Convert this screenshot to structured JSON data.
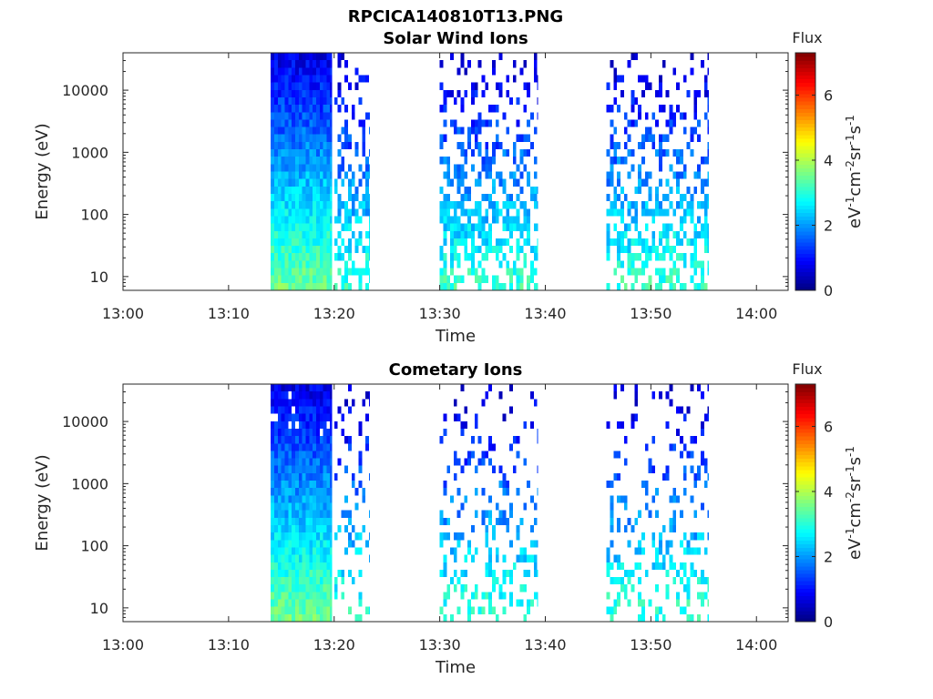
{
  "figure_title": "RPCICA140810T13.PNG",
  "chart_data": [
    {
      "type": "heatmap",
      "title": "Solar Wind Ions",
      "xlabel": "Time",
      "ylabel": "Energy (eV)",
      "x_ticks": [
        "13:00",
        "13:10",
        "13:20",
        "13:30",
        "13:40",
        "13:50",
        "14:00"
      ],
      "x_range_minutes": [
        0,
        63
      ],
      "y_scale": "log",
      "y_ticks": [
        {
          "value": 10,
          "label": "10"
        },
        {
          "value": 100,
          "label": "100"
        },
        {
          "value": 1000,
          "label": "1000"
        },
        {
          "value": 10000,
          "label": "10000"
        }
      ],
      "y_range": [
        6,
        40000
      ],
      "colorbar": {
        "title": "Flux",
        "label": "eV-1cm-2sr-1s-1",
        "ticks": [
          "0",
          "2",
          "4",
          "6"
        ],
        "range": [
          0,
          7.3
        ],
        "colormap": "jet"
      },
      "grid": false,
      "intervals_minutes": [
        [
          14.0,
          19.8,
          "dense"
        ],
        [
          20.0,
          23.4,
          "sparse"
        ],
        [
          30.0,
          39.3,
          "sparse"
        ],
        [
          45.8,
          55.5,
          "sparse"
        ]
      ],
      "seed": 7
    },
    {
      "type": "heatmap",
      "title": "Cometary Ions",
      "xlabel": "Time",
      "ylabel": "Energy (eV)",
      "x_ticks": [
        "13:00",
        "13:10",
        "13:20",
        "13:30",
        "13:40",
        "13:50",
        "14:00"
      ],
      "x_range_minutes": [
        0,
        63
      ],
      "y_scale": "log",
      "y_ticks": [
        {
          "value": 10,
          "label": "10"
        },
        {
          "value": 100,
          "label": "100"
        },
        {
          "value": 1000,
          "label": "1000"
        },
        {
          "value": 10000,
          "label": "10000"
        }
      ],
      "y_range": [
        6,
        40000
      ],
      "colorbar": {
        "title": "Flux",
        "label": "eV-1cm-2sr-1s-1",
        "ticks": [
          "0",
          "2",
          "4",
          "6"
        ],
        "range": [
          0,
          7.3
        ],
        "colormap": "jet"
      },
      "grid": false,
      "intervals_minutes": [
        [
          14.0,
          19.8,
          "dense"
        ],
        [
          20.0,
          23.4,
          "very-sparse"
        ],
        [
          30.0,
          39.3,
          "very-sparse"
        ],
        [
          45.8,
          55.5,
          "very-sparse"
        ]
      ],
      "seed": 13
    }
  ]
}
